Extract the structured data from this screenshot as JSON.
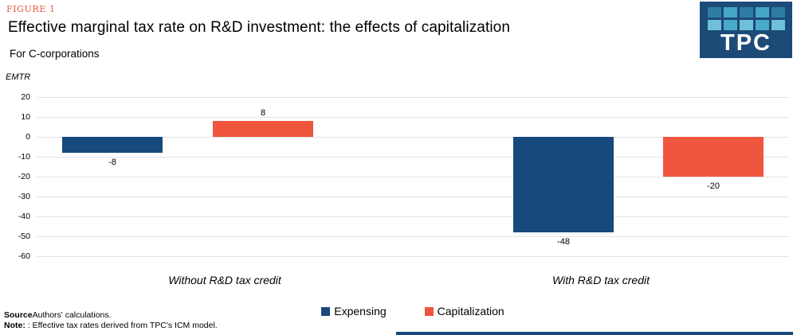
{
  "figure_label": "FIGURE 1",
  "title": "Effective marginal tax rate on R&D investment: the effects of capitalization",
  "subtitle": "For C-corporations",
  "axis_label": "EMTR",
  "colors": {
    "expensing": "#17497C",
    "capitalization": "#F0553D",
    "figure_label": "#E9583F",
    "gridline": "#E4E4E4",
    "footer_rule": "#17497C"
  },
  "logo": {
    "text": "TPC",
    "bg": "#1B4B76",
    "tile_rows": [
      [
        "#2E7CA4",
        "#45A5C6",
        "#2E7CA4",
        "#45A5C6",
        "#2E7CA4"
      ],
      [
        "#6FC0D8",
        "#49AACB",
        "#6FC0D8",
        "#49AACB",
        "#6FC0D8"
      ]
    ]
  },
  "footer": {
    "source_label": "Source",
    "source_text": "Authors' calculations.",
    "note_label": "Note:",
    "note_text": " : Effective tax rates derived from TPC's ICM model."
  },
  "chart_data": {
    "type": "bar",
    "categories": [
      "Without R&D tax credit",
      "With R&D tax credit"
    ],
    "series": [
      {
        "name": "Expensing",
        "color": "#17497C",
        "values": [
          -8,
          -48
        ]
      },
      {
        "name": "Capitalization",
        "color": "#F0553D",
        "values": [
          8,
          -20
        ]
      }
    ],
    "title": "Effective marginal tax rate on R&D investment: the effects of capitalization",
    "subtitle": "For C-corporations",
    "xlabel": "",
    "ylabel": "EMTR",
    "yticks": [
      20,
      10,
      0,
      -10,
      -20,
      -30,
      -40,
      -50,
      -60
    ],
    "ylim": [
      -60,
      20
    ],
    "grid": "horizontal",
    "legend_position": "bottom",
    "data_labels": true
  }
}
